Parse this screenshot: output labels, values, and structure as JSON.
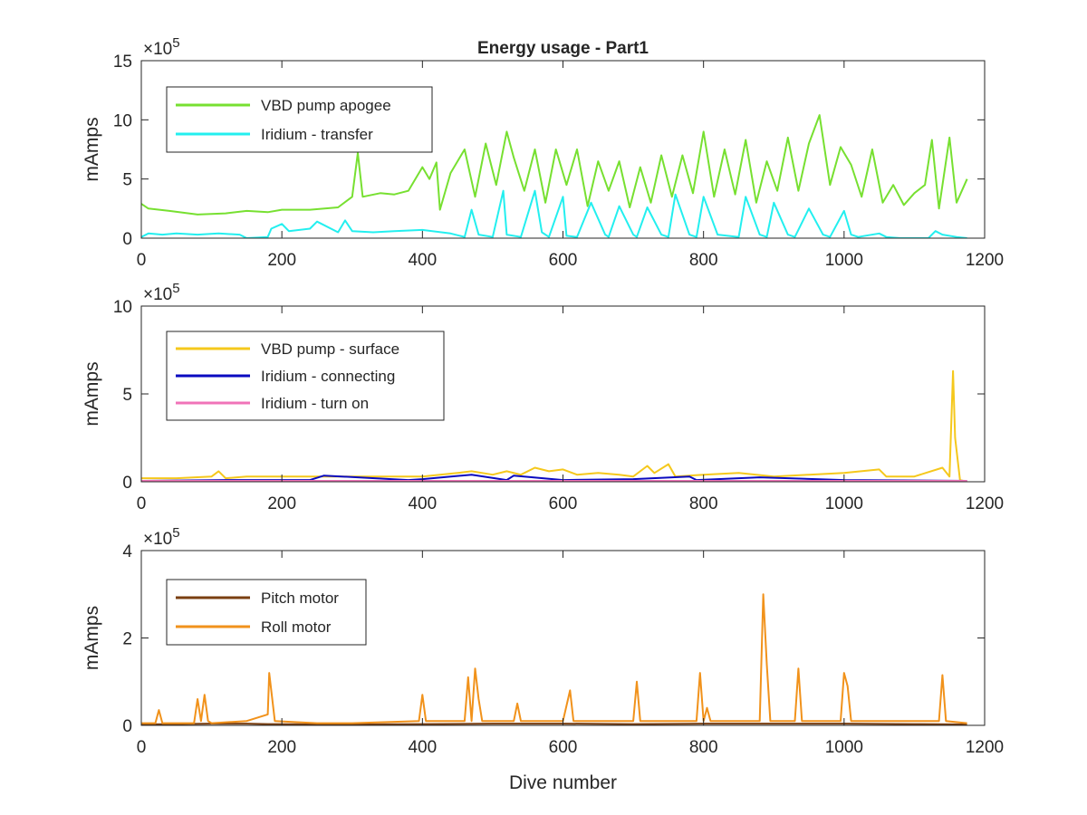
{
  "chart_data": [
    {
      "type": "line",
      "title": "Energy usage - Part1",
      "xlabel": "",
      "ylabel": "mAmps",
      "exponent_label": "×10^5",
      "xlim": [
        0,
        1200
      ],
      "ylim": [
        0,
        15
      ],
      "xticks": [
        0,
        200,
        400,
        600,
        800,
        1000,
        1200
      ],
      "yticks": [
        0,
        5,
        10,
        15
      ],
      "legend_position": "top-left",
      "series": [
        {
          "name": "VBD pump apogee",
          "color": "#77e031",
          "x": [
            0,
            10,
            40,
            80,
            120,
            150,
            180,
            200,
            240,
            280,
            300,
            308,
            315,
            340,
            360,
            380,
            400,
            410,
            420,
            425,
            440,
            460,
            475,
            490,
            505,
            520,
            530,
            545,
            560,
            575,
            590,
            605,
            620,
            635,
            650,
            665,
            680,
            695,
            710,
            725,
            740,
            755,
            770,
            785,
            800,
            815,
            830,
            845,
            860,
            875,
            890,
            905,
            920,
            935,
            950,
            965,
            980,
            995,
            1010,
            1025,
            1040,
            1055,
            1070,
            1085,
            1100,
            1115,
            1125,
            1135,
            1150,
            1160,
            1175
          ],
          "values": [
            2.9,
            2.5,
            2.3,
            2.0,
            2.1,
            2.3,
            2.2,
            2.4,
            2.4,
            2.6,
            3.5,
            7.2,
            3.5,
            3.8,
            3.7,
            4.0,
            6.0,
            5.0,
            6.4,
            2.4,
            5.5,
            7.5,
            3.5,
            8.0,
            4.5,
            9.0,
            6.8,
            4.0,
            7.5,
            3.0,
            7.5,
            4.5,
            7.5,
            2.7,
            6.5,
            4.0,
            6.5,
            2.6,
            6.0,
            3.0,
            7.0,
            3.5,
            7.0,
            3.8,
            9.0,
            3.5,
            7.5,
            3.7,
            8.3,
            3.0,
            6.5,
            4.0,
            8.5,
            4.0,
            8.0,
            10.4,
            4.5,
            7.7,
            6.2,
            3.5,
            7.5,
            3.0,
            4.5,
            2.8,
            3.8,
            4.5,
            8.3,
            2.5,
            8.5,
            3.0,
            5.0
          ]
        },
        {
          "name": "Iridium - transfer",
          "color": "#23efef",
          "x": [
            0,
            10,
            30,
            50,
            80,
            110,
            140,
            150,
            180,
            185,
            200,
            210,
            240,
            250,
            280,
            290,
            300,
            330,
            360,
            400,
            440,
            460,
            470,
            480,
            500,
            515,
            520,
            540,
            560,
            570,
            580,
            600,
            605,
            620,
            640,
            660,
            665,
            680,
            700,
            705,
            720,
            740,
            750,
            760,
            780,
            790,
            800,
            820,
            850,
            860,
            880,
            890,
            900,
            920,
            930,
            950,
            970,
            980,
            1000,
            1010,
            1020,
            1050,
            1060,
            1080,
            1120,
            1130,
            1140,
            1160,
            1175
          ],
          "values": [
            0.1,
            0.4,
            0.3,
            0.4,
            0.3,
            0.4,
            0.3,
            0.0,
            0.1,
            0.8,
            1.2,
            0.6,
            0.8,
            1.4,
            0.5,
            1.5,
            0.6,
            0.5,
            0.6,
            0.7,
            0.4,
            0.1,
            2.4,
            0.3,
            0.1,
            4.0,
            0.3,
            0.1,
            4.0,
            0.5,
            0.1,
            3.5,
            0.2,
            0.1,
            3.0,
            0.3,
            0.1,
            2.7,
            0.3,
            0.1,
            2.6,
            0.3,
            0.1,
            3.7,
            0.3,
            0.1,
            3.5,
            0.3,
            0.1,
            3.5,
            0.3,
            0.1,
            3.0,
            0.3,
            0.1,
            2.5,
            0.3,
            0.1,
            2.3,
            0.3,
            0.1,
            0.4,
            0.1,
            0.0,
            0.0,
            0.6,
            0.3,
            0.1,
            0.0
          ]
        }
      ]
    },
    {
      "type": "line",
      "title": "",
      "xlabel": "",
      "ylabel": "mAmps",
      "exponent_label": "×10^5",
      "xlim": [
        0,
        1200
      ],
      "ylim": [
        0,
        10
      ],
      "xticks": [
        0,
        200,
        400,
        600,
        800,
        1000,
        1200
      ],
      "yticks": [
        0,
        5,
        10
      ],
      "legend_position": "top-left",
      "series": [
        {
          "name": "VBD pump - surface",
          "color": "#f5c81c",
          "x": [
            0,
            50,
            100,
            110,
            120,
            150,
            200,
            250,
            300,
            350,
            400,
            450,
            470,
            500,
            520,
            540,
            560,
            580,
            600,
            620,
            650,
            680,
            700,
            720,
            730,
            750,
            760,
            800,
            850,
            900,
            950,
            1000,
            1050,
            1060,
            1100,
            1140,
            1150,
            1155,
            1158,
            1165,
            1175
          ],
          "values": [
            0.2,
            0.2,
            0.3,
            0.6,
            0.2,
            0.3,
            0.3,
            0.3,
            0.3,
            0.3,
            0.3,
            0.5,
            0.6,
            0.4,
            0.6,
            0.4,
            0.8,
            0.6,
            0.7,
            0.4,
            0.5,
            0.4,
            0.3,
            0.9,
            0.5,
            1.0,
            0.3,
            0.4,
            0.5,
            0.3,
            0.4,
            0.5,
            0.7,
            0.3,
            0.3,
            0.8,
            0.3,
            6.3,
            2.5,
            0.1,
            0.0
          ]
        },
        {
          "name": "Iridium - connecting",
          "color": "#0a0ac0",
          "x": [
            0,
            120,
            240,
            260,
            380,
            400,
            470,
            520,
            530,
            600,
            700,
            780,
            790,
            880,
            1000,
            1175
          ],
          "values": [
            0.05,
            0.1,
            0.1,
            0.35,
            0.1,
            0.15,
            0.4,
            0.1,
            0.35,
            0.1,
            0.15,
            0.3,
            0.1,
            0.25,
            0.1,
            0.05
          ]
        },
        {
          "name": "Iridium - turn on",
          "color": "#f073b8",
          "x": [
            0,
            1175
          ],
          "values": [
            0.05,
            0.05
          ]
        }
      ]
    },
    {
      "type": "line",
      "title": "",
      "xlabel": "Dive number",
      "ylabel": "mAmps",
      "exponent_label": "×10^5",
      "xlim": [
        0,
        1200
      ],
      "ylim": [
        0,
        4
      ],
      "xticks": [
        0,
        200,
        400,
        600,
        800,
        1000,
        1200
      ],
      "yticks": [
        0,
        2,
        4
      ],
      "legend_position": "top-left",
      "series": [
        {
          "name": "Pitch motor",
          "color": "#7a3f11",
          "x": [
            0,
            100,
            150,
            180,
            300,
            400,
            500,
            600,
            700,
            800,
            900,
            1000,
            1100,
            1175
          ],
          "values": [
            0.02,
            0.04,
            0.04,
            0.03,
            0.02,
            0.03,
            0.04,
            0.04,
            0.03,
            0.04,
            0.04,
            0.04,
            0.03,
            0.02
          ]
        },
        {
          "name": "Roll motor",
          "color": "#f1921b",
          "x": [
            0,
            20,
            25,
            30,
            75,
            80,
            85,
            90,
            95,
            100,
            150,
            180,
            182,
            190,
            250,
            300,
            395,
            400,
            405,
            460,
            465,
            470,
            475,
            480,
            485,
            530,
            535,
            540,
            600,
            610,
            615,
            620,
            700,
            705,
            710,
            720,
            790,
            795,
            800,
            805,
            810,
            880,
            885,
            890,
            895,
            930,
            935,
            940,
            995,
            1000,
            1005,
            1010,
            1135,
            1140,
            1145,
            1175
          ],
          "values": [
            0.05,
            0.05,
            0.35,
            0.05,
            0.05,
            0.6,
            0.1,
            0.7,
            0.1,
            0.05,
            0.1,
            0.25,
            1.2,
            0.1,
            0.05,
            0.05,
            0.1,
            0.7,
            0.1,
            0.1,
            1.1,
            0.1,
            1.3,
            0.6,
            0.1,
            0.1,
            0.5,
            0.1,
            0.1,
            0.8,
            0.1,
            0.1,
            0.1,
            1.0,
            0.1,
            0.1,
            0.1,
            1.2,
            0.1,
            0.4,
            0.1,
            0.1,
            3.0,
            1.4,
            0.1,
            0.1,
            1.3,
            0.1,
            0.1,
            1.2,
            0.9,
            0.1,
            0.1,
            1.15,
            0.1,
            0.05
          ]
        }
      ]
    }
  ]
}
